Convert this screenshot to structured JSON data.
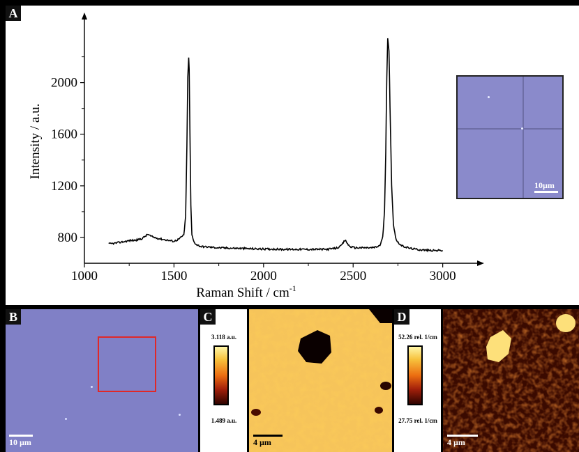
{
  "panels": {
    "a": "A",
    "b": "B",
    "c": "C",
    "d": "D"
  },
  "chart_data": {
    "type": "line",
    "xlabel": "Raman Shift / cm",
    "xlabel_sup": "-1",
    "ylabel": "Intensity / a.u.",
    "xlim": [
      1000,
      3200
    ],
    "ylim": [
      600,
      2500
    ],
    "x_ticks": [
      1000,
      1500,
      2000,
      2500,
      3000
    ],
    "y_ticks": [
      800,
      1200,
      1600,
      2000
    ],
    "grid": false,
    "series": [
      {
        "x": [
          1135,
          1170,
          1210,
          1250,
          1290,
          1320,
          1340,
          1355,
          1370,
          1390,
          1420,
          1460,
          1500,
          1530,
          1555,
          1565,
          1572,
          1577,
          1582,
          1585,
          1589,
          1594,
          1600,
          1610,
          1625,
          1650,
          1700,
          1750,
          1800,
          1850,
          1900,
          1950,
          2000,
          2050,
          2100,
          2150,
          2200,
          2250,
          2300,
          2350,
          2400,
          2430,
          2445,
          2455,
          2465,
          2480,
          2510,
          2550,
          2600,
          2630,
          2650,
          2665,
          2675,
          2682,
          2688,
          2693,
          2700,
          2706,
          2715,
          2725,
          2740,
          2770,
          2820,
          2870,
          2920,
          2960,
          3000
        ],
        "y": [
          750,
          755,
          765,
          775,
          780,
          790,
          810,
          825,
          810,
          800,
          790,
          780,
          770,
          790,
          820,
          960,
          1500,
          2050,
          2190,
          2100,
          1600,
          1050,
          820,
          770,
          745,
          730,
          725,
          720,
          718,
          716,
          714,
          712,
          710,
          710,
          708,
          708,
          708,
          708,
          708,
          708,
          715,
          730,
          760,
          780,
          760,
          730,
          720,
          720,
          720,
          725,
          740,
          800,
          1000,
          1450,
          2050,
          2350,
          2250,
          1800,
          1200,
          900,
          780,
          735,
          715,
          705,
          700,
          698,
          700
        ]
      }
    ]
  },
  "inset": {
    "scale_label": "10µm"
  },
  "panel_b": {
    "scale_label": "10 µm"
  },
  "panel_c": {
    "cbar_max": "3.118 a.u.",
    "cbar_min": "1.489 a.u.",
    "scale_label": "4 µm"
  },
  "panel_d": {
    "cbar_max": "52.26 rel. 1/cm",
    "cbar_min": "27.75 rel. 1/cm",
    "scale_label": "4 µm"
  },
  "colors": {
    "optical_bg": "#8080c6",
    "roi": "#e02828",
    "colormap_high": "#fff6a8",
    "colormap_mid": "#ec6e11",
    "colormap_low": "#300400"
  }
}
